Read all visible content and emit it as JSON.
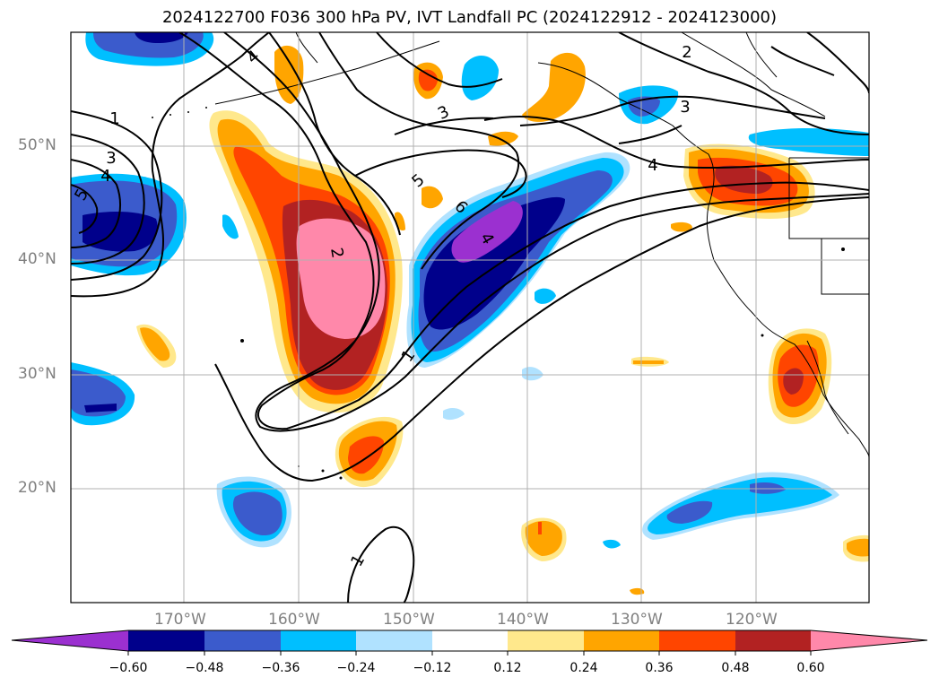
{
  "title": "2024122700 F036 300 hPa PV, IVT Landfall PC (2024122912 - 2024123000)",
  "lat_labels": [
    "50°N",
    "40°N",
    "30°N",
    "20°N"
  ],
  "lon_labels": [
    "170°W",
    "160°W",
    "150°W",
    "140°W",
    "130°W",
    "120°W"
  ],
  "contour_labels": [
    "1",
    "1",
    "1",
    "2",
    "2",
    "3",
    "3",
    "3",
    "4",
    "4",
    "4",
    "4",
    "5",
    "5",
    "6"
  ],
  "colorbar": {
    "tick_labels": [
      "−0.60",
      "−0.48",
      "−0.36",
      "−0.24",
      "−0.12",
      "0.12",
      "0.24",
      "0.36",
      "0.48",
      "0.60"
    ],
    "colors": [
      "#9b30d0",
      "#00008b",
      "#3b5bcc",
      "#00bfff",
      "#b0e2ff",
      "#ffffff",
      "#ffe88c",
      "#ffa500",
      "#ff4500",
      "#b22222",
      "#ff88aa"
    ]
  }
}
